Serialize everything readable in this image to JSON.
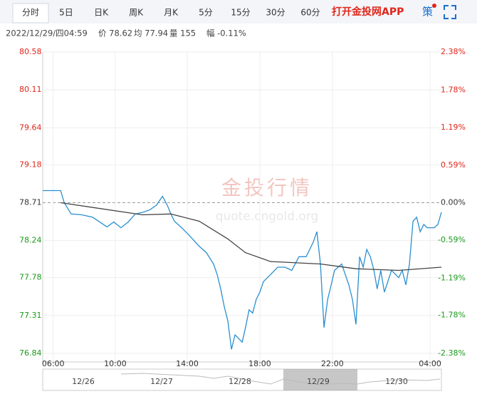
{
  "tabs": [
    "分时",
    "5日",
    "日K",
    "周K",
    "月K",
    "5分",
    "15分",
    "30分",
    "60分"
  ],
  "app_link": "打开金投网APP",
  "strategy": "策",
  "info": [
    "2022/12/29/四04:59",
    "价 78.62",
    "均 77.94",
    "量 155",
    "幅 -0.11%"
  ],
  "watermark": [
    "金投行情",
    "quote.cngold.org"
  ],
  "navigator_dates": [
    "12/26",
    "12/27",
    "12/28",
    "12/29",
    "12/30"
  ],
  "chart_data": {
    "type": "line",
    "grid": true,
    "xlim": [
      -35,
      1300
    ],
    "xticks": [
      {
        "value": 0,
        "label": "06:00"
      },
      {
        "value": 208,
        "label": "10:00"
      },
      {
        "value": 449,
        "label": "14:00"
      },
      {
        "value": 692,
        "label": "18:00"
      },
      {
        "value": 935,
        "label": "22:00"
      },
      {
        "value": 1262,
        "label": "04:00"
      }
    ],
    "ylim": [
      76.84,
      80.58
    ],
    "yticks": [
      80.58,
      80.11,
      79.64,
      79.18,
      78.71,
      78.24,
      77.78,
      77.31,
      76.84
    ],
    "y2lim": [
      -2.38,
      2.38
    ],
    "y2ticks": [
      {
        "value": 2.38,
        "label": "2.38%"
      },
      {
        "value": 1.78,
        "label": "1.78%"
      },
      {
        "value": 1.19,
        "label": "1.19%"
      },
      {
        "value": 0.59,
        "label": "0.59%"
      },
      {
        "value": 0,
        "label": "0.00%"
      },
      {
        "value": -0.59,
        "label": "-0.59%"
      },
      {
        "value": -1.19,
        "label": "-1.19%"
      },
      {
        "value": -1.78,
        "label": "-1.78%"
      },
      {
        "value": -2.38,
        "label": "-2.38%"
      }
    ],
    "series": [
      {
        "color": "#2a8fd0",
        "x": [
          -35,
          25,
          37,
          60,
          96,
          132,
          156,
          180,
          203,
          227,
          251,
          275,
          299,
          323,
          346,
          366,
          382,
          394,
          406,
          430,
          454,
          489,
          513,
          537,
          549,
          561,
          573,
          585,
          597,
          609,
          633,
          644,
          656,
          668,
          680,
          692,
          704,
          728,
          752,
          776,
          799,
          823,
          847,
          871,
          883,
          895,
          907,
          919,
          931,
          942,
          966,
          990,
          1002,
          1014,
          1026,
          1038,
          1050,
          1062,
          1074,
          1085,
          1097,
          1109,
          1133,
          1157,
          1169,
          1181,
          1193,
          1205,
          1217,
          1229,
          1241,
          1252,
          1276,
          1288,
          1300
        ],
        "values": [
          78.86,
          78.86,
          78.71,
          78.57,
          78.56,
          78.53,
          78.47,
          78.41,
          78.47,
          78.4,
          78.47,
          78.57,
          78.59,
          78.62,
          78.68,
          78.79,
          78.68,
          78.57,
          78.48,
          78.4,
          78.31,
          78.17,
          78.09,
          77.95,
          77.82,
          77.64,
          77.42,
          77.24,
          76.89,
          77.07,
          76.98,
          77.16,
          77.38,
          77.34,
          77.51,
          77.6,
          77.73,
          77.82,
          77.91,
          77.91,
          77.87,
          78.04,
          78.04,
          78.22,
          78.35,
          77.95,
          77.16,
          77.51,
          77.69,
          77.87,
          77.95,
          77.69,
          77.51,
          77.2,
          78.04,
          77.91,
          78.13,
          78.04,
          77.87,
          77.64,
          77.87,
          77.6,
          77.87,
          77.78,
          77.87,
          77.69,
          77.95,
          78.48,
          78.53,
          78.35,
          78.44,
          78.4,
          78.4,
          78.44,
          78.59
        ]
      },
      {
        "color": "#444444",
        "x": [
          25,
          299,
          394,
          489,
          585,
          644,
          728,
          895,
          1014,
          1157,
          1300
        ],
        "values": [
          78.71,
          78.56,
          78.57,
          78.48,
          78.26,
          78.09,
          77.98,
          77.95,
          77.89,
          77.87,
          77.91
        ]
      }
    ]
  }
}
